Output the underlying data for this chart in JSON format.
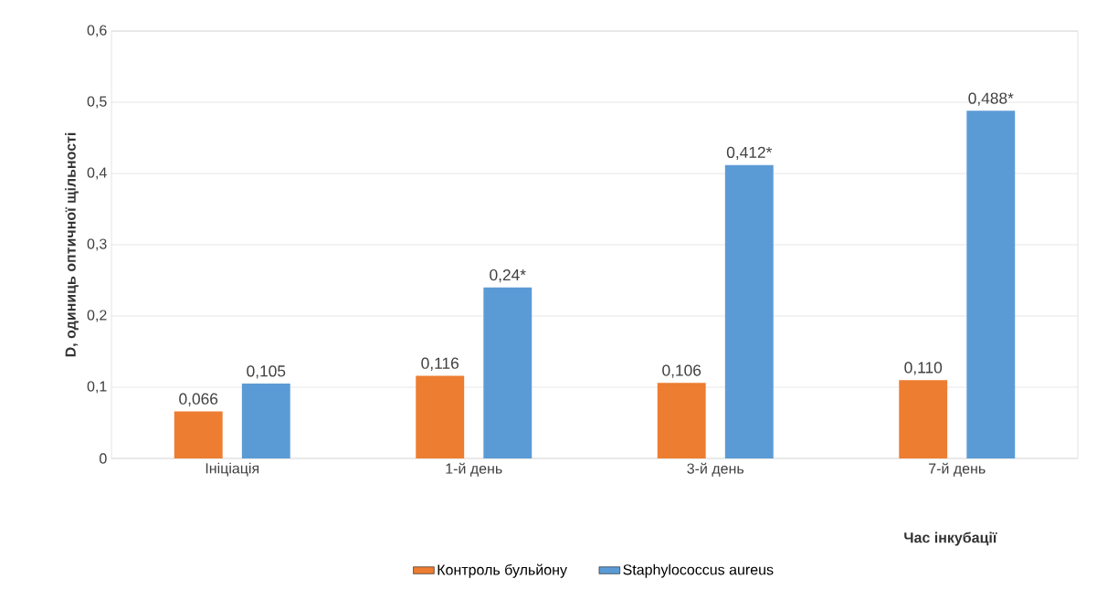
{
  "chart_data": {
    "type": "bar",
    "xlabel": "Час інкубації",
    "ylabel": "D, одиниць оптичної щільності",
    "categories": [
      "Ініціація",
      "1-й день",
      "3-й день",
      "7-й день"
    ],
    "series": [
      {
        "name": "Контроль бульйону",
        "color": "#ed7d31",
        "values": [
          0.066,
          0.116,
          0.106,
          0.11
        ],
        "value_labels": [
          "0,066",
          "0,116",
          "0,106",
          "0,110"
        ]
      },
      {
        "name": "Staphylococcus aureus",
        "color": "#5b9bd5",
        "values": [
          0.105,
          0.24,
          0.412,
          0.488
        ],
        "value_labels": [
          "0,105",
          "0,24*",
          "0,412*",
          "0,488*"
        ]
      }
    ],
    "ylim": [
      0,
      0.6
    ],
    "yticks": [
      {
        "value": 0,
        "label": "0"
      },
      {
        "value": 0.1,
        "label": "0,1"
      },
      {
        "value": 0.2,
        "label": "0,2"
      },
      {
        "value": 0.3,
        "label": "0,3"
      },
      {
        "value": 0.4,
        "label": "0,4"
      },
      {
        "value": 0.5,
        "label": "0,5"
      },
      {
        "value": 0.6,
        "label": "0,6"
      }
    ],
    "grid": "y",
    "legend": "bottom"
  }
}
